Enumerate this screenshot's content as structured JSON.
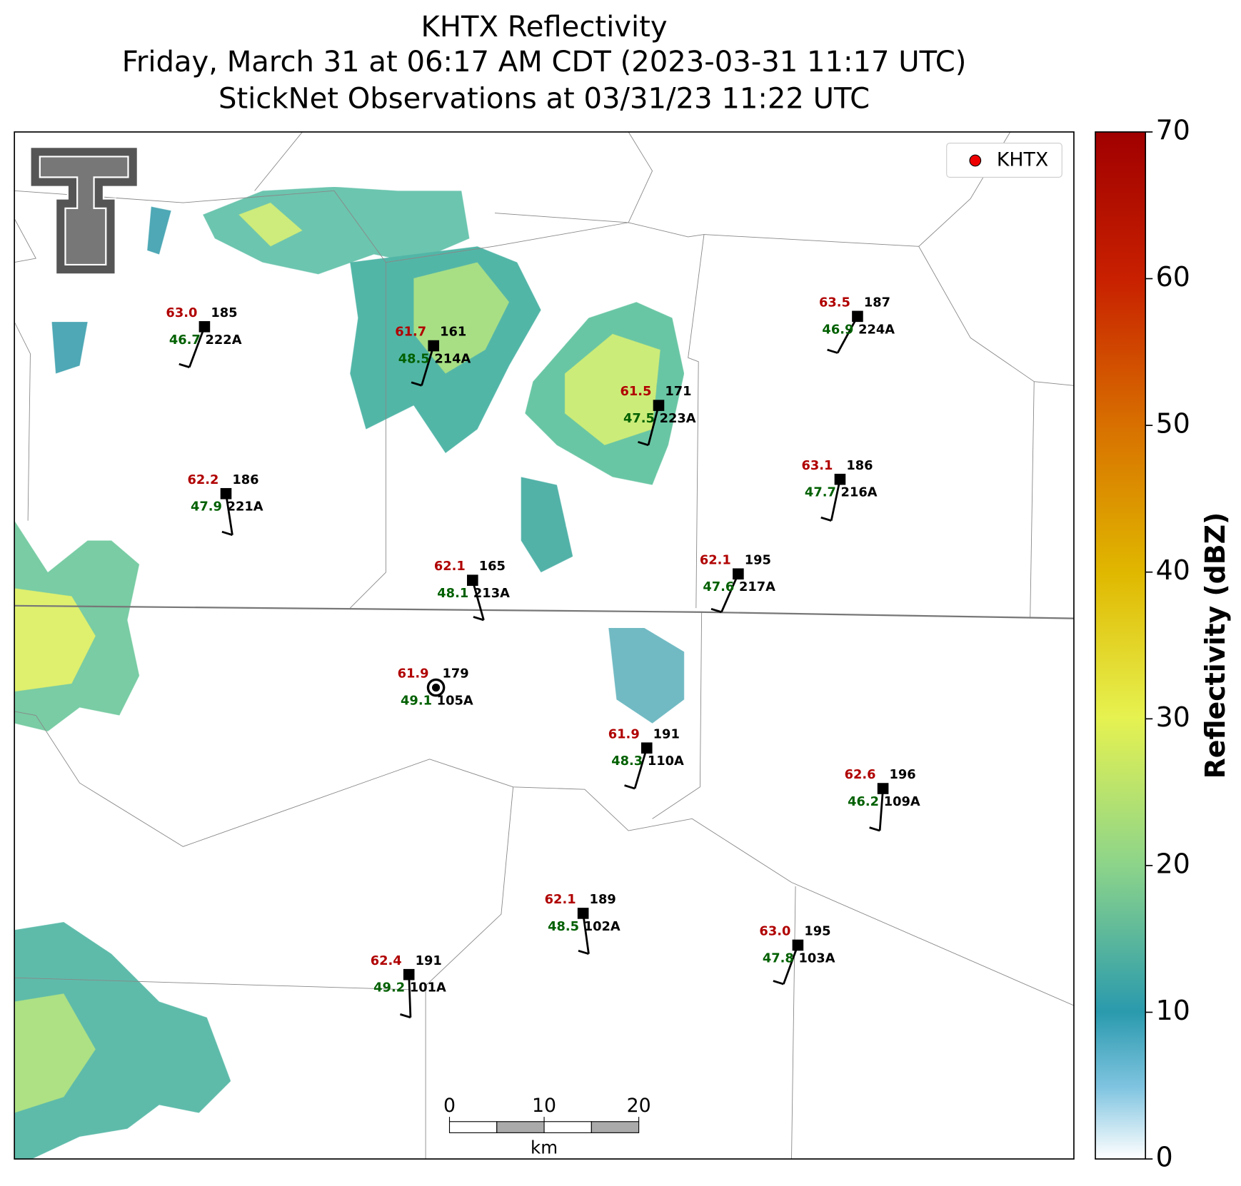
{
  "header": {
    "title_lines": [
      "KHTX Reflectivity",
      "Friday, March 31 at 06:17 AM CDT (2023-03-31 11:17 UTC)",
      "StickNet Observations at 03/31/23 11:22 UTC"
    ]
  },
  "legend": {
    "label": "KHTX"
  },
  "stations": [
    {
      "temp": "63.0",
      "pressure": "185",
      "dewpoint": "46.7",
      "id": "222A"
    },
    {
      "temp": "61.7",
      "pressure": "161",
      "dewpoint": "48.5",
      "id": "214A"
    },
    {
      "temp": "61.5",
      "pressure": "171",
      "dewpoint": "47.5",
      "id": "223A"
    },
    {
      "temp": "63.5",
      "pressure": "187",
      "dewpoint": "46.9",
      "id": "224A"
    },
    {
      "temp": "62.2",
      "pressure": "186",
      "dewpoint": "47.9",
      "id": "221A"
    },
    {
      "temp": "63.1",
      "pressure": "186",
      "dewpoint": "47.7",
      "id": "216A"
    },
    {
      "temp": "62.1",
      "pressure": "165",
      "dewpoint": "48.1",
      "id": "213A"
    },
    {
      "temp": "62.1",
      "pressure": "195",
      "dewpoint": "47.6",
      "id": "217A"
    },
    {
      "temp": "61.9",
      "pressure": "179",
      "dewpoint": "49.1",
      "id": "105A"
    },
    {
      "temp": "61.9",
      "pressure": "191",
      "dewpoint": "48.3",
      "id": "110A"
    },
    {
      "temp": "62.6",
      "pressure": "196",
      "dewpoint": "46.2",
      "id": "109A"
    },
    {
      "temp": "62.1",
      "pressure": "189",
      "dewpoint": "48.5",
      "id": "102A"
    },
    {
      "temp": "63.0",
      "pressure": "195",
      "dewpoint": "47.8",
      "id": "103A"
    },
    {
      "temp": "62.4",
      "pressure": "191",
      "dewpoint": "49.2",
      "id": "101A"
    }
  ],
  "scale_bar": {
    "ticks": [
      0,
      10,
      20
    ],
    "unit": "km"
  },
  "colorbar": {
    "label": "Reflectivity (dBZ)",
    "lim": [
      0,
      70
    ],
    "ticks": [
      0,
      10,
      20,
      30,
      40,
      50,
      60,
      70
    ]
  }
}
